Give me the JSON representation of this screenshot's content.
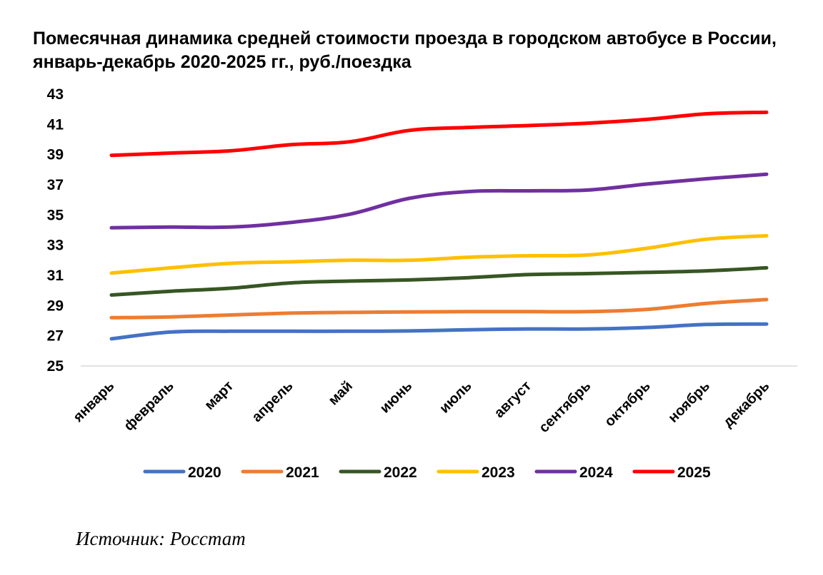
{
  "chart_data": {
    "type": "line",
    "title": "Помесячная динамика средней стоимости проезда в городском автобусе в России, январь-декабрь 2020-2025 гг., руб./поездка",
    "xlabel": "",
    "ylabel": "",
    "ylim": [
      25,
      43
    ],
    "yticks": [
      25,
      27,
      29,
      31,
      33,
      35,
      37,
      39,
      41,
      43
    ],
    "grid": false,
    "legend_position": "bottom",
    "categories": [
      "январь",
      "февраль",
      "март",
      "апрель",
      "май",
      "июнь",
      "июль",
      "август",
      "сентябрь",
      "октябрь",
      "ноябрь",
      "декабрь"
    ],
    "series": [
      {
        "name": "2020",
        "color": "#4472C4",
        "values": [
          26.8,
          27.25,
          27.3,
          27.3,
          27.3,
          27.32,
          27.4,
          27.45,
          27.45,
          27.55,
          27.75,
          27.78
        ]
      },
      {
        "name": "2021",
        "color": "#ED7D31",
        "values": [
          28.2,
          28.25,
          28.38,
          28.5,
          28.55,
          28.58,
          28.6,
          28.6,
          28.6,
          28.75,
          29.15,
          29.4
        ]
      },
      {
        "name": "2022",
        "color": "#375623",
        "values": [
          29.7,
          29.95,
          30.15,
          30.5,
          30.62,
          30.7,
          30.85,
          31.05,
          31.12,
          31.2,
          31.3,
          31.5
        ]
      },
      {
        "name": "2023",
        "color": "#FFC000",
        "values": [
          31.15,
          31.5,
          31.8,
          31.9,
          32.0,
          32.0,
          32.2,
          32.3,
          32.35,
          32.8,
          33.4,
          33.62
        ]
      },
      {
        "name": "2024",
        "color": "#7030A0",
        "values": [
          34.15,
          34.2,
          34.2,
          34.5,
          35.05,
          36.1,
          36.55,
          36.6,
          36.65,
          37.05,
          37.4,
          37.7
        ]
      },
      {
        "name": "2025",
        "color": "#FF0000",
        "values": [
          38.95,
          39.1,
          39.25,
          39.65,
          39.85,
          40.6,
          40.8,
          40.92,
          41.08,
          41.33,
          41.7,
          41.8
        ]
      }
    ]
  },
  "source_note": "Источник: Росстат"
}
